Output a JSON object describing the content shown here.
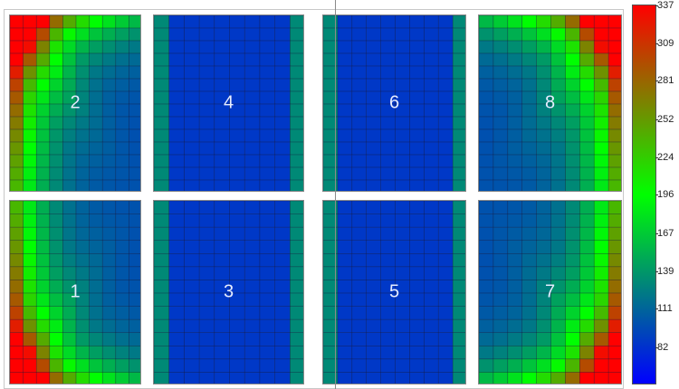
{
  "chart_data": {
    "type": "heatmap",
    "title": "",
    "xlabel": "",
    "ylabel": "",
    "color_range": [
      54,
      337
    ],
    "colormap": [
      "#0000ff",
      "#00ff00",
      "#ff0000"
    ],
    "colorbar_ticks": [
      337,
      309,
      281,
      252,
      224,
      196,
      167,
      139,
      111,
      82
    ],
    "panels": [
      {
        "label": "2",
        "hot_corner": "top-left"
      },
      {
        "label": "4",
        "hot_corner": "none"
      },
      {
        "label": "6",
        "hot_corner": "none"
      },
      {
        "label": "8",
        "hot_corner": "top-right"
      },
      {
        "label": "1",
        "hot_corner": "bottom-left"
      },
      {
        "label": "3",
        "hot_corner": "none"
      },
      {
        "label": "5",
        "hot_corner": "none"
      },
      {
        "label": "7",
        "hot_corner": "bottom-right"
      }
    ]
  }
}
